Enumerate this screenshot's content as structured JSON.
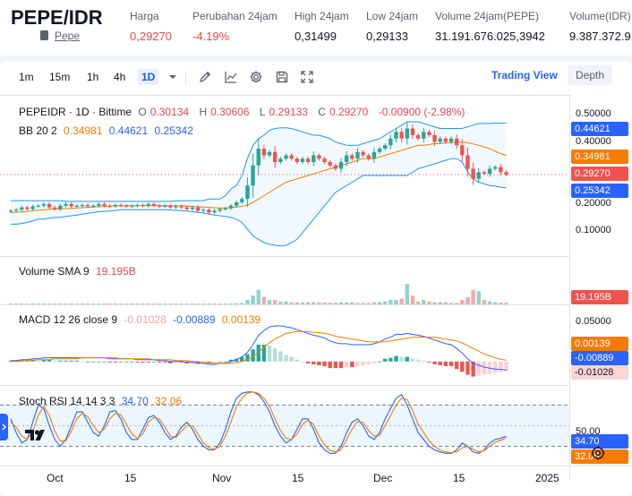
{
  "ticker": {
    "pair": "PEPE/IDR",
    "token_link": "Pepe",
    "stats": [
      {
        "label": "Harga",
        "value": "0,29270",
        "color": "red"
      },
      {
        "label": "Perubahan 24jam",
        "value": "-4.19%",
        "color": "red"
      },
      {
        "label": "High 24jam",
        "value": "0,31499",
        "color": "normal"
      },
      {
        "label": "Low 24jam",
        "value": "0,29133",
        "color": "normal"
      },
      {
        "label": "Volume 24jam(PEPE)",
        "value": "31.191.676.025,3942",
        "color": "normal"
      },
      {
        "label": "Volume(IDR)",
        "value": "9.387.372.9",
        "color": "normal"
      }
    ]
  },
  "toolbar": {
    "timeframes": [
      "1m",
      "15m",
      "1h",
      "4h",
      "1D"
    ],
    "active_timeframe": "1D",
    "icons": [
      "chevron-down-icon",
      "pencil-icon",
      "indicators-icon",
      "gear-icon",
      "save-icon",
      "fullscreen-icon"
    ],
    "tab_tradingview": "Trading View",
    "tab_depth": "Depth"
  },
  "main_legend": {
    "title": "PEPEIDR · 1D · Bittime",
    "o_label": "O",
    "o": "0.30134",
    "h_label": "H",
    "h": "0.30606",
    "l_label": "L",
    "l": "0.29133",
    "c_label": "C",
    "c": "0.29270",
    "change": "-0.00900 (-2.98%)"
  },
  "bb_legend": {
    "label": "BB 20 2",
    "basis": "0.34981",
    "upper": "0.44621",
    "lower": "0.25342"
  },
  "volume_legend": {
    "label": "Volume SMA 9",
    "value": "19.195B"
  },
  "macd_legend": {
    "label": "MACD 12 26 close 9",
    "hist": "-0.01028",
    "macd": "-0.00889",
    "signal": "0.00139"
  },
  "stoch_legend": {
    "label": "Stoch RSI 14 14 3 3",
    "k": "34.70",
    "d": "32.06"
  },
  "price_scale": {
    "main_ticks": [
      "0.50000",
      "0.40000",
      "0.30000",
      "0.20000",
      "0.10000"
    ],
    "tags": {
      "upper": "0.44621",
      "basis": "0.34981",
      "last": "0.29270",
      "lower": "0.25342"
    },
    "volume_tag": "19.195B",
    "macd_ticks": [
      "0.05000"
    ],
    "macd_tags": {
      "signal": "0.00139",
      "macd": "-0.00889",
      "hist": "-0.01028"
    },
    "stoch_ticks": [
      "50.00"
    ],
    "stoch_tags": {
      "k": "34.70",
      "d": "32.06"
    }
  },
  "time_axis": [
    "Oct",
    "15",
    "Nov",
    "15",
    "Dec",
    "15",
    "2025"
  ],
  "colors": {
    "up": "#26a69a",
    "down": "#ef5350",
    "bb": "#2196f3",
    "bb_basis": "#f57c00",
    "macd": "#2962ff",
    "signal": "#f57c00",
    "k": "#2962ff",
    "d": "#f57c00",
    "accent": "#2962ff",
    "red": "#e5484d"
  },
  "chart_data": [
    {
      "type": "candlestick",
      "title": "PEPEIDR · 1D · Bittime",
      "x_start": "2024-09-24",
      "x_end": "2024-12-25",
      "x_ticks": [
        "Oct",
        "15",
        "Nov",
        "15",
        "Dec",
        "15",
        "2025"
      ],
      "ylim": [
        0.05,
        0.53
      ],
      "y_ticks": [
        0.1,
        0.2,
        0.3,
        0.4,
        0.5
      ],
      "close": [
        0.185,
        0.188,
        0.195,
        0.19,
        0.198,
        0.2,
        0.205,
        0.195,
        0.19,
        0.2,
        0.205,
        0.198,
        0.2,
        0.202,
        0.198,
        0.2,
        0.205,
        0.2,
        0.198,
        0.202,
        0.2,
        0.198,
        0.2,
        0.202,
        0.2,
        0.205,
        0.2,
        0.198,
        0.2,
        0.195,
        0.198,
        0.195,
        0.19,
        0.195,
        0.185,
        0.188,
        0.18,
        0.185,
        0.19,
        0.192,
        0.2,
        0.21,
        0.22,
        0.26,
        0.32,
        0.37,
        0.35,
        0.36,
        0.33,
        0.34,
        0.35,
        0.34,
        0.33,
        0.34,
        0.33,
        0.35,
        0.34,
        0.33,
        0.32,
        0.31,
        0.33,
        0.35,
        0.34,
        0.36,
        0.35,
        0.34,
        0.36,
        0.37,
        0.38,
        0.4,
        0.42,
        0.4,
        0.43,
        0.41,
        0.4,
        0.42,
        0.41,
        0.39,
        0.4,
        0.39,
        0.4,
        0.38,
        0.35,
        0.31,
        0.28,
        0.3,
        0.295,
        0.31,
        0.315,
        0.3,
        0.2927
      ],
      "series": [
        {
          "name": "BB upper",
          "values": [
            0.215,
            0.215,
            0.215,
            0.215,
            0.215,
            0.215,
            0.215,
            0.215,
            0.215,
            0.215,
            0.213,
            0.213,
            0.213,
            0.213,
            0.213,
            0.213,
            0.213,
            0.213,
            0.213,
            0.213,
            0.213,
            0.213,
            0.213,
            0.213,
            0.213,
            0.213,
            0.213,
            0.213,
            0.213,
            0.213,
            0.215,
            0.215,
            0.215,
            0.215,
            0.215,
            0.215,
            0.22,
            0.22,
            0.22,
            0.23,
            0.25,
            0.26,
            0.29,
            0.34,
            0.38,
            0.4,
            0.41,
            0.425,
            0.43,
            0.432,
            0.432,
            0.43,
            0.425,
            0.42,
            0.415,
            0.41,
            0.41,
            0.405,
            0.4,
            0.39,
            0.385,
            0.38,
            0.38,
            0.38,
            0.385,
            0.39,
            0.395,
            0.4,
            0.41,
            0.42,
            0.43,
            0.44,
            0.45,
            0.45,
            0.45,
            0.445,
            0.44,
            0.435,
            0.43,
            0.43,
            0.43,
            0.43,
            0.43,
            0.435,
            0.44,
            0.445,
            0.445,
            0.445,
            0.446,
            0.446,
            0.4462
          ]
        },
        {
          "name": "BB basis",
          "values": [
            0.18,
            0.18,
            0.182,
            0.183,
            0.185,
            0.187,
            0.188,
            0.189,
            0.19,
            0.19,
            0.191,
            0.192,
            0.193,
            0.194,
            0.195,
            0.196,
            0.197,
            0.198,
            0.198,
            0.199,
            0.2,
            0.2,
            0.2,
            0.2,
            0.2,
            0.2,
            0.2,
            0.2,
            0.2,
            0.2,
            0.2,
            0.2,
            0.199,
            0.198,
            0.197,
            0.196,
            0.195,
            0.194,
            0.193,
            0.193,
            0.194,
            0.196,
            0.198,
            0.202,
            0.21,
            0.22,
            0.23,
            0.24,
            0.25,
            0.26,
            0.27,
            0.275,
            0.28,
            0.285,
            0.29,
            0.295,
            0.3,
            0.305,
            0.31,
            0.315,
            0.32,
            0.325,
            0.33,
            0.335,
            0.34,
            0.34,
            0.34,
            0.345,
            0.35,
            0.355,
            0.36,
            0.365,
            0.37,
            0.375,
            0.38,
            0.38,
            0.382,
            0.385,
            0.385,
            0.387,
            0.388,
            0.389,
            0.389,
            0.388,
            0.384,
            0.38,
            0.375,
            0.37,
            0.362,
            0.355,
            0.3498
          ]
        },
        {
          "name": "BB lower",
          "values": [
            0.145,
            0.145,
            0.147,
            0.15,
            0.155,
            0.16,
            0.16,
            0.163,
            0.165,
            0.165,
            0.168,
            0.17,
            0.172,
            0.175,
            0.177,
            0.18,
            0.182,
            0.183,
            0.184,
            0.186,
            0.188,
            0.188,
            0.188,
            0.188,
            0.188,
            0.188,
            0.188,
            0.188,
            0.188,
            0.187,
            0.186,
            0.185,
            0.184,
            0.182,
            0.18,
            0.178,
            0.175,
            0.172,
            0.17,
            0.168,
            0.165,
            0.16,
            0.15,
            0.13,
            0.11,
            0.1,
            0.09,
            0.085,
            0.082,
            0.08,
            0.082,
            0.09,
            0.1,
            0.12,
            0.14,
            0.16,
            0.18,
            0.2,
            0.22,
            0.24,
            0.25,
            0.26,
            0.27,
            0.28,
            0.29,
            0.29,
            0.29,
            0.29,
            0.29,
            0.29,
            0.29,
            0.29,
            0.29,
            0.3,
            0.31,
            0.315,
            0.32,
            0.325,
            0.33,
            0.335,
            0.34,
            0.34,
            0.33,
            0.3,
            0.28,
            0.27,
            0.265,
            0.26,
            0.258,
            0.255,
            0.2534
          ]
        }
      ]
    },
    {
      "type": "bar",
      "title": "Volume SMA 9",
      "ylim": [
        0,
        30
      ],
      "values": [
        0.5,
        0.4,
        0.5,
        0.4,
        0.4,
        0.5,
        0.4,
        0.4,
        0.5,
        0.4,
        0.4,
        0.4,
        0.4,
        0.4,
        0.4,
        0.4,
        0.4,
        0.4,
        0.4,
        0.4,
        0.4,
        0.4,
        0.4,
        0.4,
        0.4,
        0.4,
        0.4,
        0.4,
        0.4,
        0.4,
        0.4,
        0.4,
        0.4,
        0.4,
        0.4,
        0.4,
        0.4,
        0.4,
        0.4,
        0.5,
        0.6,
        0.8,
        1,
        3,
        6,
        10,
        5,
        3,
        3,
        2,
        2,
        1.5,
        1.5,
        1.5,
        1.5,
        1.5,
        1.2,
        1.2,
        1.2,
        1.2,
        1.5,
        1.5,
        1.5,
        1,
        1,
        1,
        1.5,
        1.5,
        2,
        3,
        3,
        4,
        14,
        6,
        2,
        3,
        2,
        1.5,
        1.5,
        1.5,
        1,
        1,
        3,
        5,
        10,
        9,
        3,
        2,
        1.5,
        1.2,
        1.2
      ]
    },
    {
      "type": "line",
      "title": "MACD 12 26 close 9",
      "ylim": [
        -0.025,
        0.06
      ],
      "y_ticks": [
        0.05
      ],
      "series": [
        {
          "name": "MACD",
          "values": [
            0.001,
            0.001,
            0.002,
            0.002,
            0.003,
            0.003,
            0.004,
            0.004,
            0.004,
            0.004,
            0.004,
            0.004,
            0.004,
            0.004,
            0.004,
            0.004,
            0.004,
            0.004,
            0.003,
            0.003,
            0.003,
            0.003,
            0.003,
            0.002,
            0.002,
            0.002,
            0.002,
            0.001,
            0.001,
            0,
            0,
            0,
            -0.001,
            -0.001,
            -0.002,
            -0.002,
            -0.003,
            -0.003,
            -0.002,
            -0.002,
            0,
            0.002,
            0.005,
            0.01,
            0.018,
            0.028,
            0.033,
            0.037,
            0.038,
            0.038,
            0.037,
            0.036,
            0.034,
            0.032,
            0.03,
            0.028,
            0.027,
            0.025,
            0.022,
            0.02,
            0.019,
            0.019,
            0.018,
            0.018,
            0.018,
            0.018,
            0.019,
            0.021,
            0.024,
            0.026,
            0.029,
            0.029,
            0.03,
            0.029,
            0.028,
            0.027,
            0.025,
            0.023,
            0.021,
            0.019,
            0.018,
            0.014,
            0.009,
            0.003,
            -0.002,
            -0.004,
            -0.006,
            -0.007,
            -0.008,
            -0.0085,
            -0.00889
          ]
        },
        {
          "name": "Signal",
          "values": [
            0,
            0,
            0.001,
            0.001,
            0.001,
            0.002,
            0.002,
            0.002,
            0.003,
            0.003,
            0.003,
            0.003,
            0.003,
            0.004,
            0.004,
            0.004,
            0.004,
            0.004,
            0.004,
            0.004,
            0.003,
            0.003,
            0.003,
            0.003,
            0.003,
            0.003,
            0.002,
            0.002,
            0.002,
            0.002,
            0.001,
            0.001,
            0.001,
            0,
            0,
            -0.001,
            -0.001,
            -0.002,
            -0.002,
            -0.002,
            -0.002,
            -0.001,
            0,
            0.002,
            0.005,
            0.01,
            0.015,
            0.02,
            0.024,
            0.027,
            0.03,
            0.031,
            0.032,
            0.032,
            0.032,
            0.031,
            0.031,
            0.03,
            0.029,
            0.027,
            0.026,
            0.025,
            0.024,
            0.023,
            0.022,
            0.021,
            0.021,
            0.021,
            0.021,
            0.022,
            0.023,
            0.024,
            0.025,
            0.026,
            0.026,
            0.026,
            0.026,
            0.026,
            0.025,
            0.024,
            0.023,
            0.022,
            0.02,
            0.017,
            0.014,
            0.011,
            0.008,
            0.006,
            0.004,
            0.0025,
            0.00139
          ]
        },
        {
          "name": "Histogram",
          "values": [
            0.001,
            0.001,
            0.001,
            0.001,
            0.002,
            0.001,
            0.002,
            0.002,
            0.001,
            0.001,
            0.001,
            0.001,
            0.001,
            0,
            0,
            0,
            0,
            0,
            -0.001,
            -0.001,
            0,
            0,
            0,
            -0.001,
            -0.001,
            -0.001,
            0,
            -0.001,
            -0.001,
            -0.002,
            -0.001,
            -0.001,
            -0.002,
            -0.001,
            -0.002,
            -0.001,
            -0.002,
            -0.001,
            0,
            0,
            0.002,
            0.003,
            0.005,
            0.008,
            0.013,
            0.018,
            0.018,
            0.017,
            0.014,
            0.011,
            0.007,
            0.005,
            0.002,
            0,
            -0.002,
            -0.003,
            -0.004,
            -0.005,
            -0.007,
            -0.007,
            -0.007,
            -0.006,
            -0.006,
            -0.005,
            -0.004,
            -0.003,
            -0.002,
            0,
            0.003,
            0.004,
            0.006,
            0.005,
            0.005,
            0.003,
            0.002,
            0.001,
            -0.001,
            -0.003,
            -0.004,
            -0.005,
            -0.005,
            -0.008,
            -0.011,
            -0.014,
            -0.016,
            -0.015,
            -0.014,
            -0.013,
            -0.012,
            -0.011,
            -0.01028
          ]
        }
      ]
    },
    {
      "type": "line",
      "title": "Stoch RSI 14 14 3 3",
      "ylim": [
        0,
        100
      ],
      "y_ticks": [
        50
      ],
      "band": [
        20,
        80
      ],
      "series": [
        {
          "name": "K",
          "values": [
            60,
            40,
            25,
            30,
            55,
            80,
            75,
            50,
            30,
            20,
            30,
            50,
            70,
            70,
            55,
            40,
            35,
            50,
            70,
            72,
            60,
            40,
            30,
            30,
            45,
            62,
            65,
            55,
            40,
            30,
            35,
            48,
            55,
            45,
            30,
            20,
            15,
            15,
            25,
            45,
            70,
            90,
            97,
            99,
            99,
            95,
            85,
            70,
            50,
            35,
            25,
            30,
            45,
            60,
            60,
            45,
            25,
            15,
            10,
            10,
            20,
            40,
            55,
            60,
            50,
            35,
            30,
            40,
            60,
            75,
            90,
            95,
            80,
            60,
            40,
            30,
            20,
            15,
            12,
            10,
            10,
            15,
            25,
            20,
            12,
            10,
            15,
            25,
            30,
            32,
            34.7
          ]
        },
        {
          "name": "D",
          "values": [
            55,
            48,
            35,
            30,
            42,
            65,
            78,
            65,
            42,
            28,
            28,
            42,
            60,
            68,
            63,
            50,
            40,
            45,
            60,
            68,
            66,
            52,
            38,
            32,
            38,
            55,
            62,
            60,
            48,
            35,
            33,
            42,
            50,
            50,
            38,
            25,
            18,
            16,
            20,
            35,
            55,
            78,
            90,
            97,
            99,
            97,
            90,
            78,
            60,
            43,
            32,
            30,
            38,
            52,
            58,
            52,
            35,
            22,
            14,
            12,
            15,
            30,
            45,
            56,
            55,
            43,
            35,
            36,
            50,
            65,
            80,
            90,
            88,
            72,
            52,
            40,
            28,
            20,
            15,
            12,
            11,
            12,
            18,
            20,
            16,
            12,
            14,
            20,
            26,
            29,
            32.06
          ]
        }
      ]
    }
  ]
}
